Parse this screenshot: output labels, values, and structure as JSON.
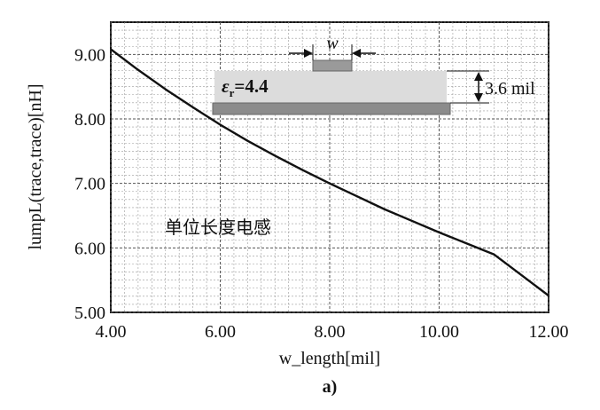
{
  "chart_data": {
    "type": "line",
    "title": "",
    "xlabel": "w_length[mil]",
    "ylabel": "lumpL(trace,trace)[nH]",
    "xlim": [
      4.0,
      12.0
    ],
    "ylim": [
      5.0,
      9.5
    ],
    "x_ticks": [
      "4.00",
      "6.00",
      "8.00",
      "10.00",
      "12.00"
    ],
    "y_ticks": [
      "5.00",
      "6.00",
      "7.00",
      "8.00",
      "9.00"
    ],
    "grid": true,
    "series": [
      {
        "x": [
          4.0,
          4.5,
          5.0,
          5.5,
          6.0,
          6.5,
          7.0,
          7.5,
          8.0,
          8.5,
          9.0,
          9.5,
          10.0,
          10.5,
          11.0,
          11.5,
          12.0
        ],
        "y": [
          9.08,
          8.76,
          8.46,
          8.18,
          7.91,
          7.66,
          7.43,
          7.21,
          7.0,
          6.8,
          6.6,
          6.42,
          6.24,
          6.07,
          5.9,
          5.58,
          5.26
        ]
      }
    ],
    "annotation": "单位长度电感"
  },
  "inset": {
    "width_label": "w",
    "epsilon_symbol": "ε",
    "epsilon_subscript": "r",
    "epsilon_value": "=4.4",
    "height_label": "3.6 mil"
  },
  "caption": "a)"
}
